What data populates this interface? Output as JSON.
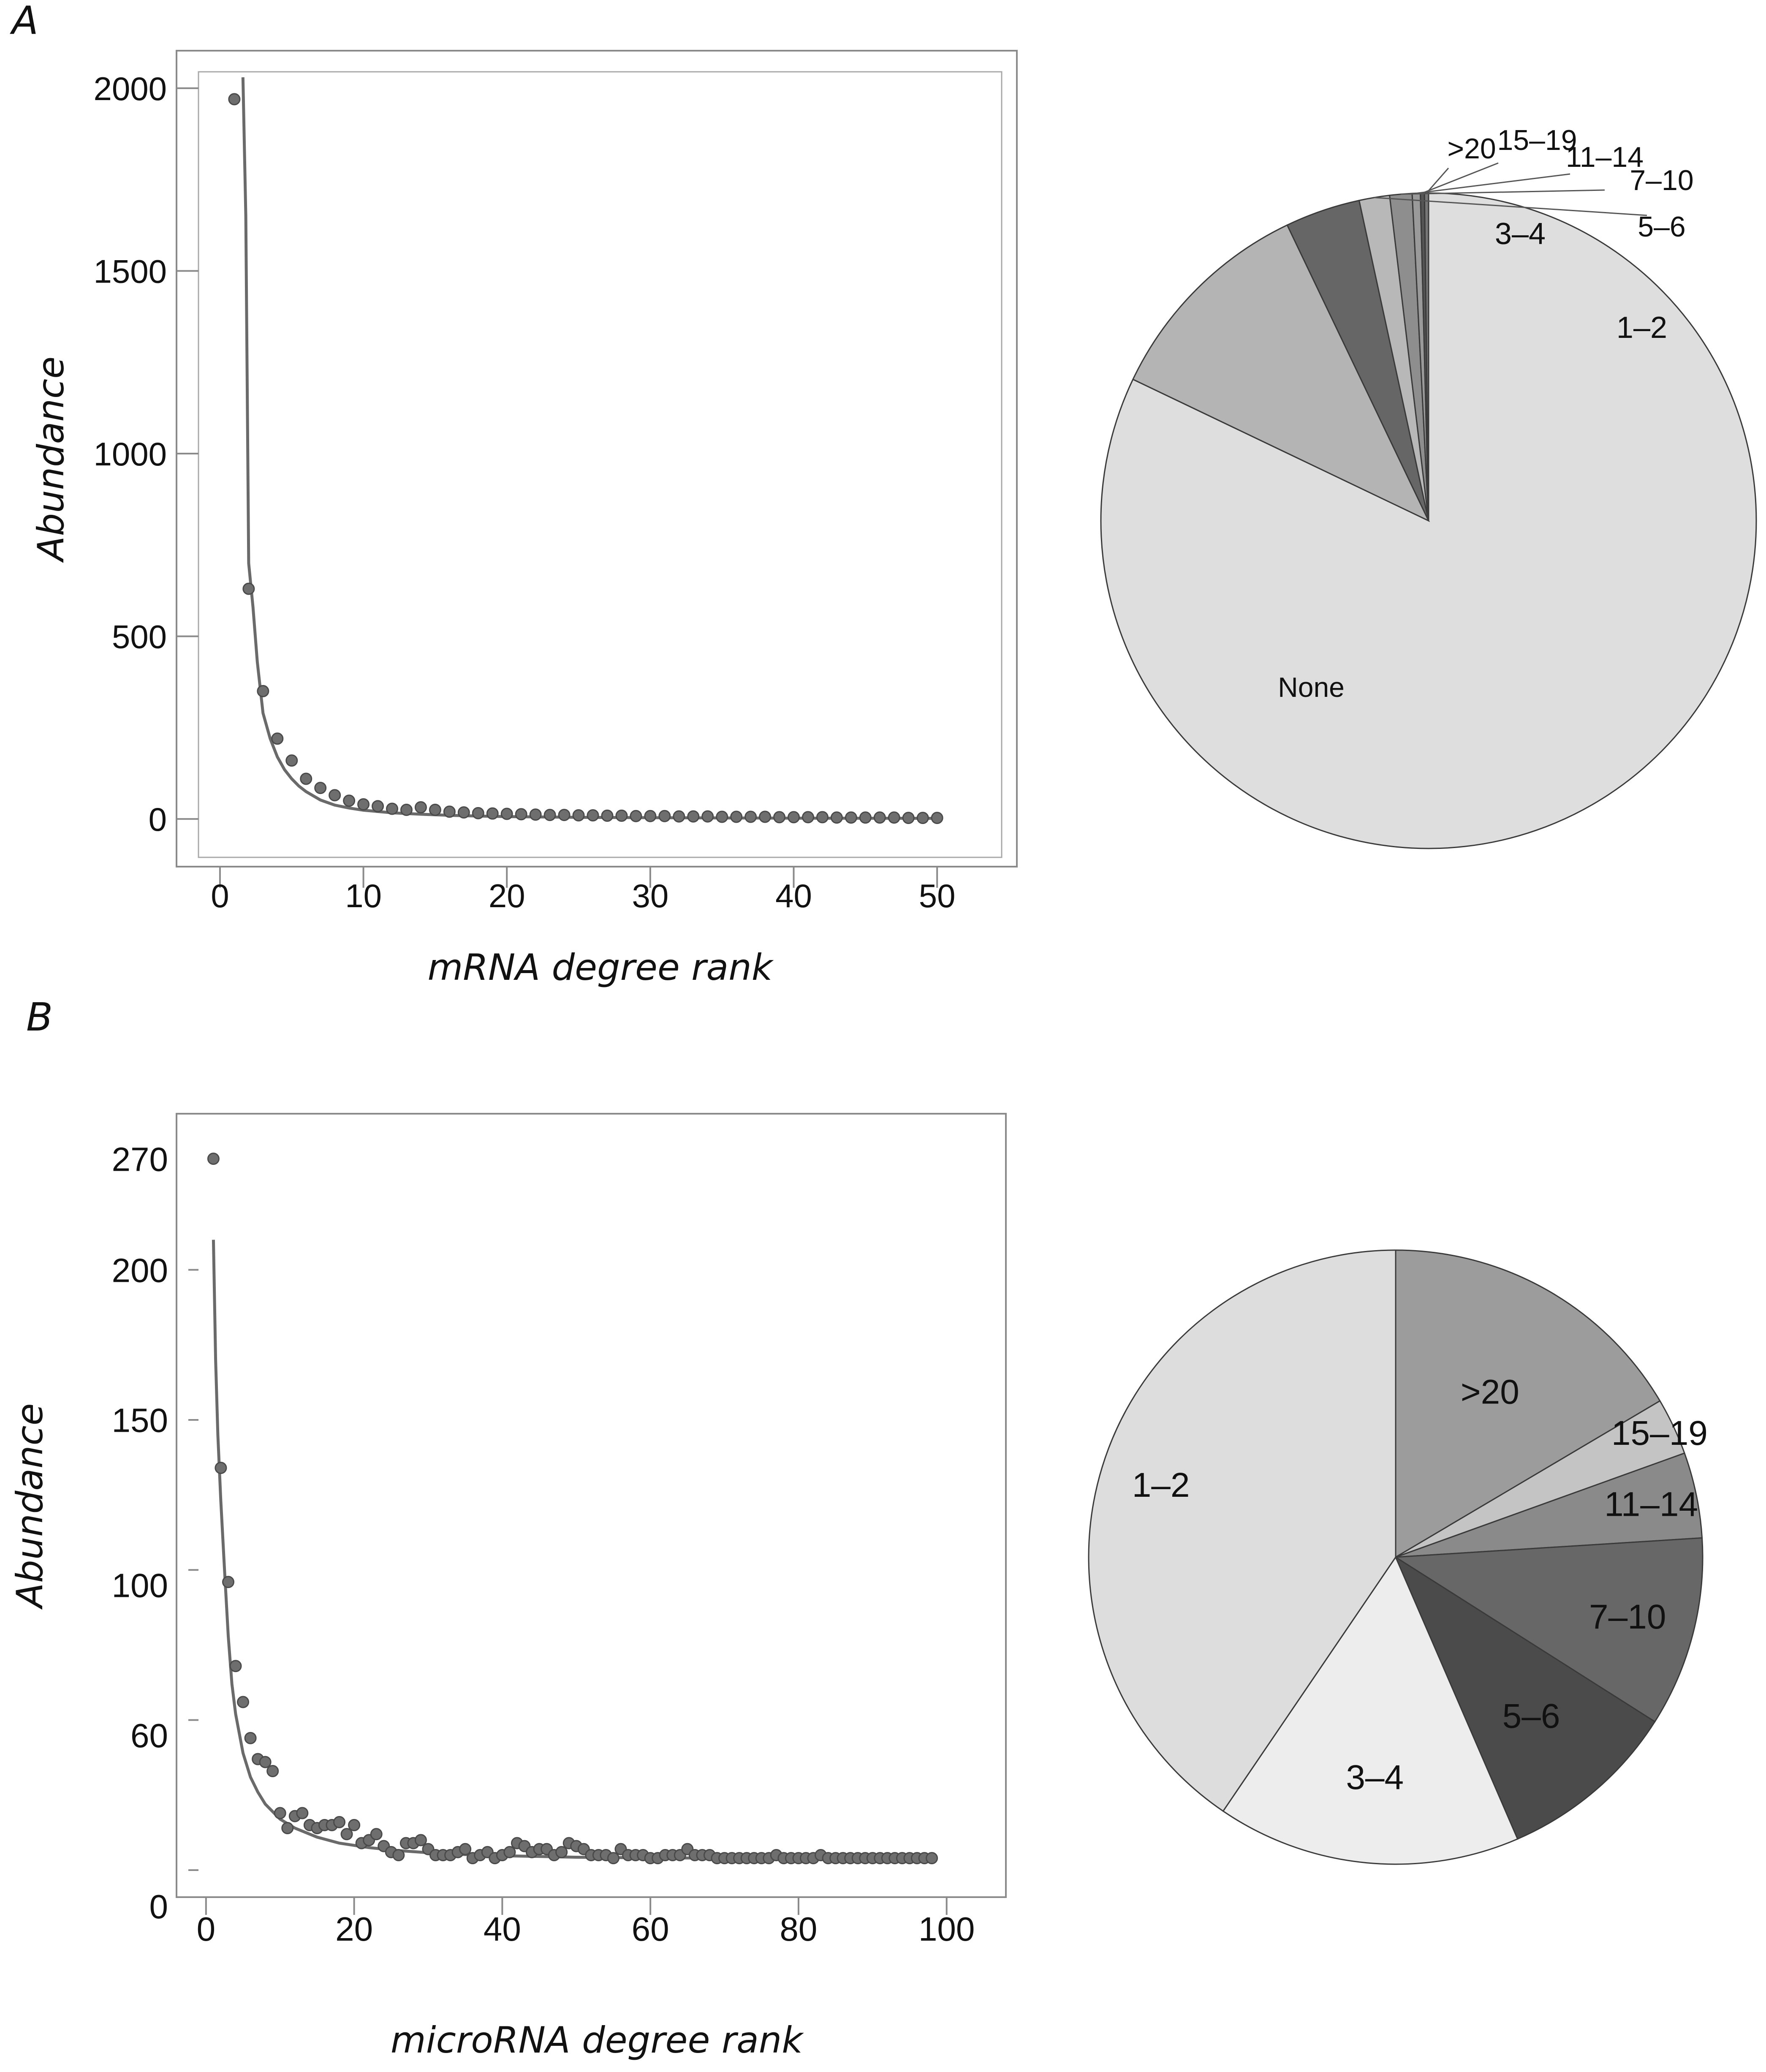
{
  "figure": {
    "panel_a_label": "A",
    "panel_b_label": "B"
  },
  "colors": {
    "point": "#6e6e6e",
    "point_stroke": "#4a4a4a",
    "fit_line": "#6a6a6a",
    "frame": "#8a8a8a",
    "pie_stroke": "#3a3a3a"
  },
  "chart_data": [
    {
      "id": "scatterA",
      "type": "scatter",
      "title": "",
      "xlabel": "mRNA degree rank",
      "ylabel": "Abundance",
      "xlim": [
        -1.5,
        54.5
      ],
      "ylim": [
        -105,
        2045
      ],
      "x_ticks": [
        0,
        10,
        20,
        30,
        40,
        50
      ],
      "y_ticks": [
        {
          "label": "2000",
          "tick": 2000,
          "label_value": 2000
        },
        {
          "label": "1500",
          "tick": 1500,
          "label_value": 1500
        },
        {
          "label": "1000",
          "tick": 1000,
          "label_value": 1000
        },
        {
          "label": "500",
          "tick": 500,
          "label_value": 500
        },
        {
          "label": "0",
          "tick": 0,
          "label_value": 0
        }
      ],
      "x": [
        1,
        2,
        3,
        4,
        5,
        6,
        7,
        8,
        9,
        10,
        11,
        12,
        13,
        14,
        15,
        16,
        17,
        18,
        19,
        20,
        21,
        22,
        23,
        24,
        25,
        26,
        27,
        28,
        29,
        30,
        31,
        32,
        33,
        34,
        35,
        36,
        37,
        38,
        39,
        40,
        41,
        42,
        43,
        44,
        45,
        46,
        47,
        48,
        49,
        50
      ],
      "y": [
        1970,
        630,
        350,
        220,
        160,
        110,
        85,
        65,
        50,
        40,
        35,
        28,
        25,
        32,
        25,
        20,
        18,
        16,
        15,
        14,
        13,
        12,
        11,
        11,
        10,
        10,
        9,
        9,
        8,
        8,
        8,
        7,
        7,
        7,
        6,
        6,
        6,
        6,
        5,
        5,
        5,
        5,
        4,
        4,
        4,
        4,
        4,
        3,
        3,
        3
      ],
      "fit_x": [
        1.6,
        1.8,
        2,
        2.3,
        2.6,
        3,
        3.5,
        4,
        4.5,
        5,
        5.5,
        6,
        7,
        8,
        9,
        10,
        12,
        14,
        16,
        18,
        20,
        25,
        30,
        35,
        40,
        45,
        50
      ],
      "fit_y": [
        2030,
        1650,
        700,
        580,
        430,
        290,
        220,
        170,
        135,
        110,
        90,
        75,
        52,
        38,
        30,
        24,
        17,
        13,
        10,
        8,
        6.5,
        4.5,
        3.5,
        2.8,
        2.3,
        2,
        1.8
      ]
    },
    {
      "id": "scatterB",
      "type": "scatter",
      "title": "",
      "xlabel": "microRNA degree rank",
      "ylabel": "Abundance",
      "xlim": [
        -2.5,
        108
      ],
      "ylim": [
        -9,
        252
      ],
      "x_ticks": [
        0,
        20,
        40,
        60,
        80,
        100
      ],
      "y_ticks": [
        {
          "label": "270",
          "tick": null,
          "label_value": 237
        },
        {
          "label": "200",
          "tick": 200,
          "label_value": 200
        },
        {
          "label": "150",
          "tick": 150,
          "label_value": 150
        },
        {
          "label": "100",
          "tick": 100,
          "label_value": 95
        },
        {
          "label": "60",
          "tick": 50,
          "label_value": 45
        },
        {
          "label": "0",
          "tick": 0,
          "label_value": -12
        }
      ],
      "x": [
        1,
        2,
        3,
        4,
        5,
        6,
        7,
        8,
        9,
        10,
        11,
        12,
        13,
        14,
        15,
        16,
        17,
        18,
        19,
        20,
        21,
        22,
        23,
        24,
        25,
        26,
        27,
        28,
        29,
        30,
        31,
        32,
        33,
        34,
        35,
        36,
        37,
        38,
        39,
        40,
        41,
        42,
        43,
        44,
        45,
        46,
        47,
        48,
        49,
        50,
        51,
        52,
        53,
        54,
        55,
        56,
        57,
        58,
        59,
        60,
        61,
        62,
        63,
        64,
        65,
        66,
        67,
        68,
        69,
        70,
        71,
        72,
        73,
        74,
        75,
        76,
        77,
        78,
        79,
        80,
        81,
        82,
        83,
        84,
        85,
        86,
        87,
        88,
        89,
        90,
        91,
        92,
        93,
        94,
        95,
        96,
        97,
        98
      ],
      "y": [
        237,
        134,
        96,
        68,
        56,
        44,
        37,
        36,
        33,
        19,
        14,
        18,
        19,
        15,
        14,
        15,
        15,
        16,
        12,
        15,
        9,
        10,
        12,
        8,
        6,
        5,
        9,
        9,
        10,
        7,
        5,
        5,
        5,
        6,
        7,
        4,
        5,
        6,
        4,
        5,
        6,
        9,
        8,
        6,
        7,
        7,
        5,
        6,
        9,
        8,
        7,
        5,
        5,
        5,
        4,
        7,
        5,
        5,
        5,
        4,
        4,
        5,
        5,
        5,
        7,
        5,
        5,
        5,
        4,
        4,
        4,
        4,
        4,
        4,
        4,
        4,
        5,
        4,
        4,
        4,
        4,
        4,
        5,
        4,
        4,
        4,
        4,
        4,
        4,
        4,
        4,
        4,
        4,
        4,
        4,
        4,
        4,
        4
      ],
      "fit_x": [
        1,
        1.3,
        1.6,
        2,
        2.5,
        3,
        3.5,
        4,
        5,
        6,
        7,
        8,
        10,
        12,
        15,
        18,
        22,
        26,
        30,
        35,
        40,
        50,
        60,
        70,
        80,
        90,
        98
      ],
      "fit_y": [
        210,
        170,
        145,
        123,
        100,
        78,
        62,
        52,
        39,
        31,
        26,
        22,
        17,
        14,
        11,
        9,
        7.5,
        6.5,
        5.8,
        5.2,
        4.8,
        4.3,
        4.1,
        4,
        3.9,
        3.8,
        3.8
      ]
    },
    {
      "id": "pieA",
      "type": "pie",
      "title": "",
      "slices": [
        {
          "label": "None",
          "value": 82.1,
          "color": "#dedede"
        },
        {
          "label": "1-2",
          "value": 10.8,
          "color": "#b4b4b4"
        },
        {
          "label": "3-4",
          "value": 3.7,
          "color": "#666666"
        },
        {
          "label": "5-6",
          "value": 1.5,
          "color": "#b8b8b8"
        },
        {
          "label": "7-10",
          "value": 1.1,
          "color": "#8e8e8e"
        },
        {
          "label": "11-14",
          "value": 0.4,
          "color": "#9a9a9a"
        },
        {
          "label": "15-19",
          "value": 0.2,
          "color": "#555555"
        },
        {
          "label": ">20",
          "value": 0.2,
          "color": "#777777"
        }
      ],
      "slice_order_clockwise_from_top": [
        "None",
        "1-2",
        "3-4",
        "5-6",
        "7-10",
        "11-14",
        "15-19",
        ">20"
      ],
      "display_labels": {
        "None": "None",
        "1-2": "1–2",
        "3-4": "3–4",
        "5-6": "5–6",
        "7-10": "7–10",
        "11-14": "11–14",
        "15-19": "15–19",
        ">20": ">20"
      }
    },
    {
      "id": "pieB",
      "type": "pie",
      "title": "",
      "slices": [
        {
          "label": ">20",
          "value": 16.5,
          "color": "#9c9c9c"
        },
        {
          "label": "15-19",
          "value": 3.0,
          "color": "#c4c4c4"
        },
        {
          "label": "11-14",
          "value": 4.5,
          "color": "#8a8a8a"
        },
        {
          "label": "7-10",
          "value": 10.0,
          "color": "#676767"
        },
        {
          "label": "5-6",
          "value": 9.5,
          "color": "#4b4b4b"
        },
        {
          "label": "3-4",
          "value": 16.0,
          "color": "#ededed"
        },
        {
          "label": "1-2",
          "value": 40.5,
          "color": "#dddddd"
        }
      ],
      "display_labels": {
        ">20": ">20",
        "15-19": "15–19",
        "11-14": "11–14",
        "7-10": "7–10",
        "5-6": "5–6",
        "3-4": "3–4",
        "1-2": "1–2"
      }
    }
  ]
}
